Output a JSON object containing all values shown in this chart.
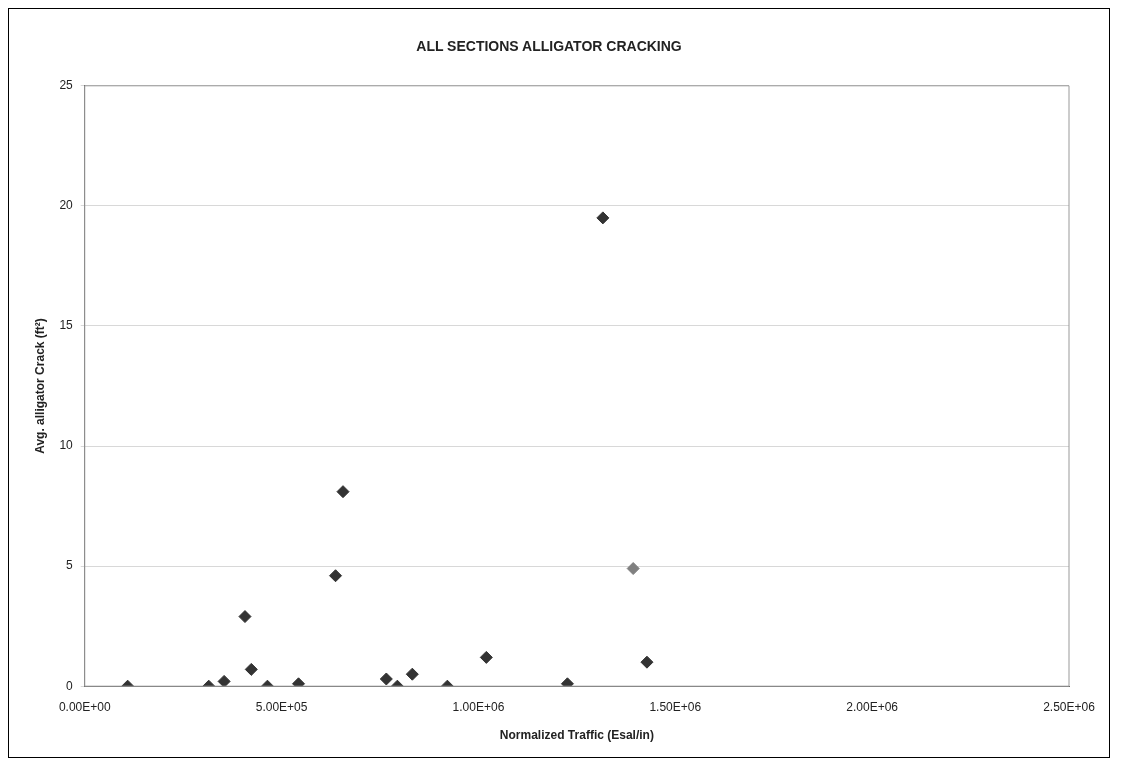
{
  "chart_data": {
    "type": "scatter",
    "title": "ALL SECTIONS ALLIGATOR CRACKING",
    "xlabel": "Normalized Traffic (Esal/in)",
    "ylabel": "Avg. alligator Crack (ft²)",
    "x": [
      109000,
      315000,
      354000,
      407000,
      423000,
      464000,
      543000,
      637000,
      656000,
      766000,
      794000,
      832000,
      921000,
      1020000,
      1226000,
      1316000,
      1393000,
      1428000
    ],
    "values": [
      0,
      0,
      0.2,
      2.9,
      0.7,
      0,
      0.1,
      4.6,
      8.1,
      0.3,
      0,
      0.5,
      0,
      1.2,
      0.1,
      19.5,
      4.9,
      1.0
    ],
    "colors": [
      "#333333",
      "#333333",
      "#333333",
      "#333333",
      "#333333",
      "#333333",
      "#333333",
      "#333333",
      "#333333",
      "#333333",
      "#333333",
      "#333333",
      "#333333",
      "#333333",
      "#333333",
      "#333333",
      "#808080",
      "#333333"
    ],
    "xlim": [
      0,
      2500000
    ],
    "xticks": [
      {
        "value": 0,
        "label": "0.00E+00"
      },
      {
        "value": 500000,
        "label": "5.00E+05"
      },
      {
        "value": 1000000,
        "label": "1.00E+06"
      },
      {
        "value": 1500000,
        "label": "1.50E+06"
      },
      {
        "value": 2000000,
        "label": "2.00E+06"
      },
      {
        "value": 2500000,
        "label": "2.50E+06"
      }
    ],
    "ylim": [
      0,
      25
    ],
    "yticks": [
      0,
      5,
      10,
      15,
      20,
      25
    ],
    "grid": "y",
    "marker": "diamond",
    "legend": false
  }
}
